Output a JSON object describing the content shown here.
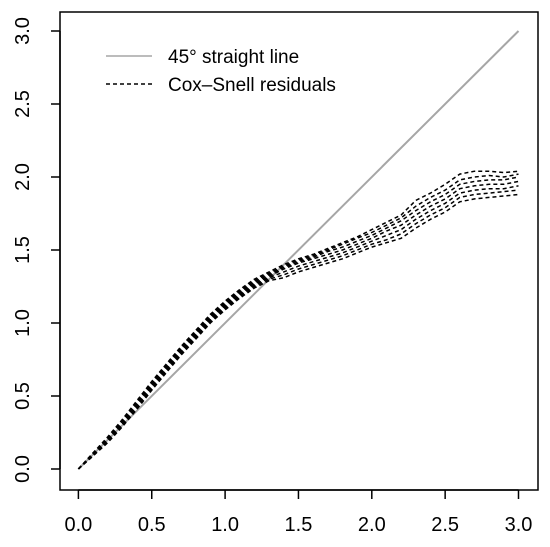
{
  "chart_data": {
    "type": "line",
    "title": "",
    "xlabel": "",
    "ylabel": "",
    "xlim": [
      0,
      3
    ],
    "ylim": [
      0,
      3
    ],
    "x_ticks": [
      "0.0",
      "0.5",
      "1.0",
      "1.5",
      "2.0",
      "2.5",
      "3.0"
    ],
    "y_ticks": [
      "0.0",
      "0.5",
      "1.0",
      "1.5",
      "2.0",
      "2.5",
      "3.0"
    ],
    "grid": false,
    "legend_position": "top-left",
    "reference_line": {
      "name": "45° straight line",
      "color": "#a6a6a6",
      "x": [
        0,
        3
      ],
      "y": [
        0,
        3
      ]
    },
    "residual_band": {
      "name": "Cox–Snell residuals",
      "color": "#000000",
      "line_style": "dashed",
      "x": [
        0,
        0.1,
        0.2,
        0.3,
        0.4,
        0.5,
        0.6,
        0.7,
        0.8,
        0.9,
        1.0,
        1.1,
        1.2,
        1.3,
        1.4,
        1.5,
        1.6,
        1.7,
        1.8,
        1.9,
        2.0,
        2.1,
        2.2,
        2.3,
        2.4,
        2.5,
        2.6,
        2.7,
        2.8,
        2.9,
        3.0
      ],
      "curves": [
        {
          "y": [
            0,
            0.11,
            0.22,
            0.34,
            0.47,
            0.6,
            0.72,
            0.84,
            0.95,
            1.06,
            1.15,
            1.23,
            1.3,
            1.35,
            1.4,
            1.44,
            1.47,
            1.51,
            1.55,
            1.59,
            1.64,
            1.69,
            1.74,
            1.84,
            1.89,
            1.95,
            2.02,
            2.04,
            2.04,
            2.03,
            2.04
          ]
        },
        {
          "y": [
            0,
            0.11,
            0.21,
            0.33,
            0.46,
            0.59,
            0.71,
            0.83,
            0.94,
            1.05,
            1.14,
            1.22,
            1.29,
            1.34,
            1.39,
            1.43,
            1.46,
            1.5,
            1.54,
            1.58,
            1.62,
            1.67,
            1.72,
            1.8,
            1.86,
            1.91,
            1.98,
            2.0,
            2.01,
            2.0,
            2.02
          ]
        },
        {
          "y": [
            0,
            0.1,
            0.21,
            0.32,
            0.45,
            0.58,
            0.7,
            0.82,
            0.93,
            1.04,
            1.13,
            1.21,
            1.28,
            1.33,
            1.38,
            1.42,
            1.45,
            1.49,
            1.52,
            1.56,
            1.6,
            1.65,
            1.7,
            1.77,
            1.83,
            1.88,
            1.95,
            1.97,
            1.98,
            1.98,
            2.0
          ]
        },
        {
          "y": [
            0,
            0.1,
            0.2,
            0.31,
            0.44,
            0.57,
            0.69,
            0.81,
            0.92,
            1.03,
            1.12,
            1.2,
            1.27,
            1.32,
            1.37,
            1.41,
            1.44,
            1.47,
            1.5,
            1.54,
            1.58,
            1.63,
            1.67,
            1.74,
            1.8,
            1.85,
            1.92,
            1.94,
            1.95,
            1.95,
            1.97
          ]
        },
        {
          "y": [
            0,
            0.1,
            0.2,
            0.31,
            0.43,
            0.56,
            0.68,
            0.8,
            0.91,
            1.02,
            1.11,
            1.19,
            1.26,
            1.31,
            1.35,
            1.39,
            1.42,
            1.45,
            1.48,
            1.52,
            1.56,
            1.6,
            1.64,
            1.71,
            1.77,
            1.82,
            1.89,
            1.91,
            1.92,
            1.92,
            1.94
          ]
        },
        {
          "y": [
            0,
            0.09,
            0.19,
            0.3,
            0.42,
            0.55,
            0.67,
            0.79,
            0.9,
            1.01,
            1.1,
            1.18,
            1.25,
            1.3,
            1.33,
            1.37,
            1.4,
            1.43,
            1.46,
            1.5,
            1.54,
            1.57,
            1.61,
            1.68,
            1.74,
            1.79,
            1.86,
            1.88,
            1.89,
            1.9,
            1.91
          ]
        },
        {
          "y": [
            0,
            0.09,
            0.18,
            0.29,
            0.41,
            0.54,
            0.66,
            0.78,
            0.89,
            1.0,
            1.09,
            1.17,
            1.24,
            1.29,
            1.31,
            1.35,
            1.38,
            1.41,
            1.44,
            1.48,
            1.52,
            1.55,
            1.58,
            1.65,
            1.71,
            1.76,
            1.83,
            1.85,
            1.86,
            1.87,
            1.88
          ]
        }
      ]
    }
  }
}
